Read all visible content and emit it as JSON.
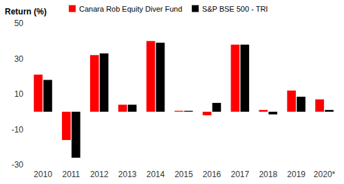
{
  "chart_data": {
    "type": "bar",
    "ylabel": "Return (%)",
    "categories": [
      "2010",
      "2011",
      "2012",
      "2013",
      "2014",
      "2015",
      "2016",
      "2017",
      "2018",
      "2019",
      "2020*"
    ],
    "series": [
      {
        "name": "Canara Rob Equity Diver Fund",
        "color": "#ff0000",
        "values": [
          21,
          -16,
          32,
          4,
          40,
          0.5,
          -2,
          38,
          1,
          12,
          7
        ]
      },
      {
        "name": "S&P BSE 500 - TRI",
        "color": "#000000",
        "values": [
          18,
          -26,
          33,
          4,
          39,
          0.5,
          5,
          38,
          -1.5,
          8.5,
          1
        ]
      }
    ],
    "ylim": [
      -30,
      50
    ],
    "yticks": [
      -30,
      -10,
      10,
      30,
      50
    ],
    "grid": false,
    "legend": "top"
  }
}
